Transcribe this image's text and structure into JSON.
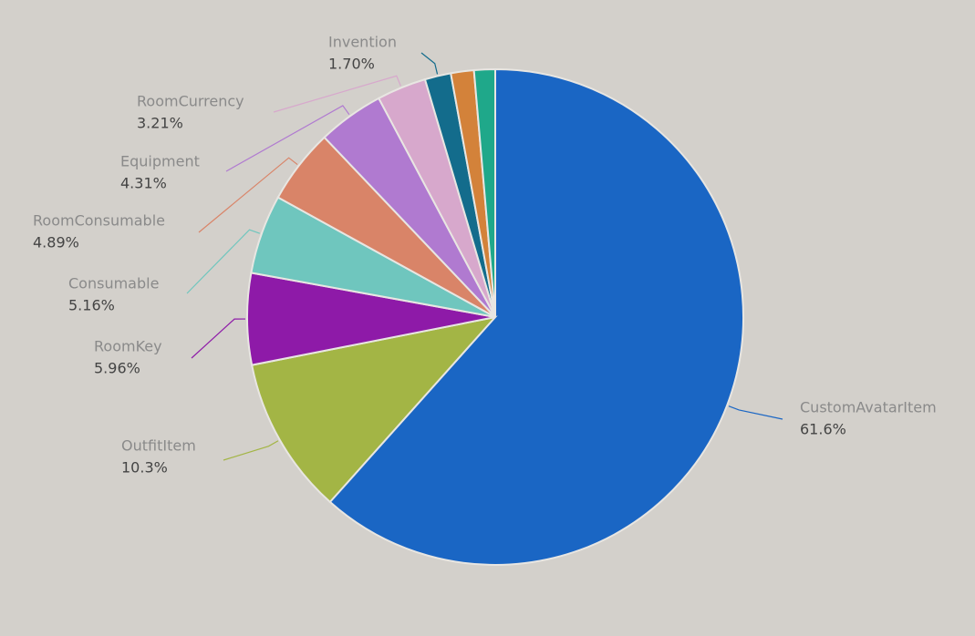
{
  "chart_data": {
    "type": "pie",
    "categories": [
      "CustomAvatarItem",
      "OutfitItem",
      "RoomKey",
      "Consumable",
      "RoomConsumable",
      "Equipment",
      "RoomCurrency",
      "Invention",
      null,
      null
    ],
    "values": [
      61.6,
      10.3,
      5.96,
      5.16,
      4.89,
      4.31,
      3.21,
      1.7,
      1.5,
      1.37
    ],
    "value_labels": [
      "61.6%",
      "10.3%",
      "5.96%",
      "5.16%",
      "4.89%",
      "4.31%",
      "3.21%",
      "1.70%",
      null,
      null
    ],
    "colors": [
      "#1a66c4",
      "#a3b545",
      "#8e1aa8",
      "#6fc6be",
      "#d98468",
      "#b07ad0",
      "#d7a8cc",
      "#136c8c",
      "#d3823a",
      "#1fa88a"
    ]
  }
}
